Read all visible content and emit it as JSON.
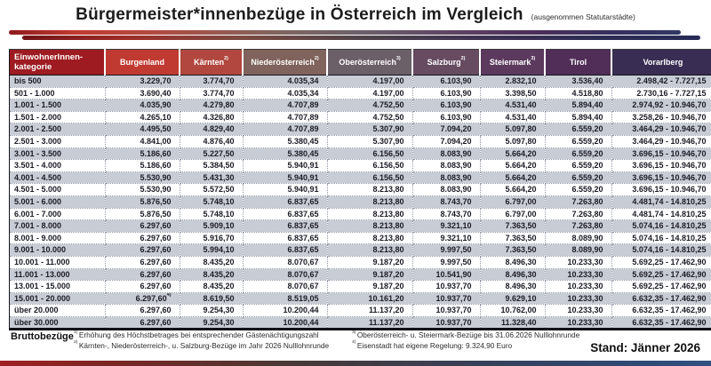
{
  "title": "Bürgermeister*innenbezüge in Österreich im Vergleich",
  "subtitle": "(ausgenommen Statutarstädte)",
  "chart_data": {
    "type": "table",
    "title": "Bürgermeister*innenbezüge in Österreich im Vergleich",
    "row_header": "EinwohnerInnen-\nkategorie",
    "columns": [
      "Burgenland",
      "Kärnten^2)",
      "Niederösterreich^2)",
      "Oberösterreich^3)",
      "Salzburg^2)",
      "Steiermark^3)",
      "Tirol",
      "Vorarlberg"
    ],
    "rows": [
      {
        "category": "bis 500",
        "values": [
          "3.229,70",
          "3.774,70",
          "4.035,34",
          "4.197,00",
          "6.103,90",
          "2.832,10",
          "3.536,40",
          "2.498,42 - 7.727,15"
        ],
        "note": "1)"
      },
      {
        "category": "501 - 1.000",
        "values": [
          "3.690,40",
          "3.774,70",
          "4.035,34",
          "4.197,00",
          "6.103,90",
          "3.398,50",
          "4.518,80",
          "2.730,16 - 7.727,15"
        ],
        "note": "1)"
      },
      {
        "category": "1.001 - 1.500",
        "values": [
          "4.035,90",
          "4.279,80",
          "4.707,89",
          "4.752,50",
          "6.103,90",
          "4.531,40",
          "5.894,40",
          "2.974,92 - 10.946,70"
        ],
        "note": "1)"
      },
      {
        "category": "1.501 - 2.000",
        "values": [
          "4.265,10",
          "4.326,80",
          "4.707,89",
          "4.752,50",
          "6.103,90",
          "4.531,40",
          "5.894,40",
          "3.258,26 - 10.946,70"
        ],
        "note": "1)"
      },
      {
        "category": "2.001 - 2.500",
        "values": [
          "4.495,50",
          "4.829,40",
          "4.707,89",
          "5.307,90",
          "7.094,20",
          "5.097,80",
          "6.559,20",
          "3.464,29 - 10.946,70"
        ],
        "note": "1)"
      },
      {
        "category": "2.501 - 3.000",
        "values": [
          "4.841,00",
          "4.876,40",
          "5.380,45",
          "5.307,90",
          "7.094,20",
          "5.097,80",
          "6.559,20",
          "3.464,29 - 10.946,70"
        ],
        "note": "1)"
      },
      {
        "category": "3.001 - 3.500",
        "values": [
          "5.186,60",
          "5.227,50",
          "5.380,45",
          "6.156,50",
          "8.083,90",
          "5.664,20",
          "6.559,20",
          "3.696,15 - 10.946,70"
        ],
        "note": "1)"
      },
      {
        "category": "3.501 - 4.000",
        "values": [
          "5.186,60",
          "5.384,50",
          "5.940,91",
          "6.156,50",
          "8.083,90",
          "5.664,20",
          "6.559,20",
          "3.696,15 - 10.946,70"
        ],
        "note": "1)"
      },
      {
        "category": "4.001 - 4.500",
        "values": [
          "5.530,90",
          "5.431,30",
          "5.940,91",
          "6.156,50",
          "8.083,90",
          "5.664,20",
          "6.559,20",
          "3.696,15 - 10.946,70"
        ],
        "note": "1)"
      },
      {
        "category": "4.501 - 5.000",
        "values": [
          "5.530,90",
          "5.572,50",
          "5.940,91",
          "8.213,80",
          "8.083,90",
          "5.664,20",
          "6.559,20",
          "3.696,15 - 10.946,70"
        ],
        "note": "1)"
      },
      {
        "category": "5.001 - 6.000",
        "values": [
          "5.876,50",
          "5.748,10",
          "6.837,65",
          "8.213,80",
          "8.743,70",
          "6.797,00",
          "7.263,80",
          "4.481,74 - 14.810,25"
        ],
        "note": "1)"
      },
      {
        "category": "6.001 - 7.000",
        "values": [
          "5.876,50",
          "5.748,10",
          "6.837,65",
          "8.213,80",
          "8.743,70",
          "6.797,00",
          "7.263,80",
          "4.481,74 - 14.810,25"
        ],
        "note": "1)"
      },
      {
        "category": "7.001 - 8.000",
        "values": [
          "6.297,60",
          "5.909,10",
          "6.837,65",
          "8.213,80",
          "9.321,10",
          "7.363,50",
          "7.263,80",
          "5.074,16 - 14.810,25"
        ],
        "note": "1)"
      },
      {
        "category": "8.001 - 9.000",
        "values": [
          "6.297,60",
          "5.916,70",
          "6.837,65",
          "8.213,80",
          "9.321,10",
          "7.363,50",
          "8.089,90",
          "5.074,16 - 14.810,25"
        ],
        "note": "1)"
      },
      {
        "category": "9.001 - 10.000",
        "values": [
          "6.297,60",
          "5.994,10",
          "6.837,65",
          "8.213,80",
          "9.997,50",
          "7.363,50",
          "8.089,90",
          "5.074,16 - 14.810,25"
        ],
        "note": "1)"
      },
      {
        "category": "10.001 - 11.000",
        "values": [
          "6.297,60",
          "8.435,20",
          "8.070,67",
          "9.187,20",
          "9.997,50",
          "8.496,30",
          "10.233,30",
          "5.692,25 - 17.462,90"
        ],
        "note": ""
      },
      {
        "category": "11.001 - 13.000",
        "values": [
          "6.297,60",
          "8.435,20",
          "8.070,67",
          "9.187,20",
          "10.541,90",
          "8.496,30",
          "10.233,30",
          "5.692,25 - 17.462,90"
        ],
        "note": ""
      },
      {
        "category": "13.001 - 15.000",
        "values": [
          "6.297,60",
          "8.435,20",
          "8.070,67",
          "9.187,20",
          "10.937,70",
          "8.496,30",
          "10.233,30",
          "5.692,25 - 17.462,90"
        ],
        "note": ""
      },
      {
        "category": "15.001 - 20.000",
        "values": [
          "6.297,60^4)",
          "8.619,50",
          "8.519,05",
          "10.161,20",
          "10.937,70",
          "9.629,10",
          "10.233,30",
          "6.632,35 - 17.462,90"
        ],
        "note": ""
      },
      {
        "category": "über 20.000",
        "values": [
          "6.297,60",
          "9.254,30",
          "10.200,44",
          "11.137,20",
          "10.937,70",
          "10.762,00",
          "10.233,30",
          "6.632,35 - 17.462,90"
        ],
        "note": ""
      },
      {
        "category": "über 30.000",
        "values": [
          "6.297,60",
          "9.254,30",
          "10.200,44",
          "11.137,20",
          "10.937,70",
          "11.328,40",
          "10.233,30",
          "6.632,35 - 17.462,90"
        ],
        "note": ""
      }
    ]
  },
  "footer": {
    "label": "Bruttobezüge",
    "notes": [
      {
        "marker": "1)",
        "text": "Erhöhung des Höchstbetrages bei entsprechender Gästenächtigungszahl"
      },
      {
        "marker": "2)",
        "text": "Kärnten-, Niederösterreich-, u. Salzburg-Bezüge im Jahr 2026 Nulllohnrunde"
      },
      {
        "marker": "3)",
        "text": "Oberösterreich- u. Steiermark-Bezüge bis 31.06.2026 Nulllohnrunde"
      },
      {
        "marker": "4)",
        "text": "Eisenstadt hat eigene Regelung: 9.324,90 Euro"
      }
    ],
    "stand": "Stand: Jänner 2026"
  },
  "colors": {
    "header_cells": [
      "#9d1b21",
      "#c03a31",
      "#b1473e",
      "#80635c",
      "#6c6068",
      "#674b61",
      "#5c3a5e",
      "#512e58",
      "#3a2d53",
      "#2d2c50"
    ],
    "row_alt": "#c8ccd4",
    "body_text": "#1b1b26"
  }
}
